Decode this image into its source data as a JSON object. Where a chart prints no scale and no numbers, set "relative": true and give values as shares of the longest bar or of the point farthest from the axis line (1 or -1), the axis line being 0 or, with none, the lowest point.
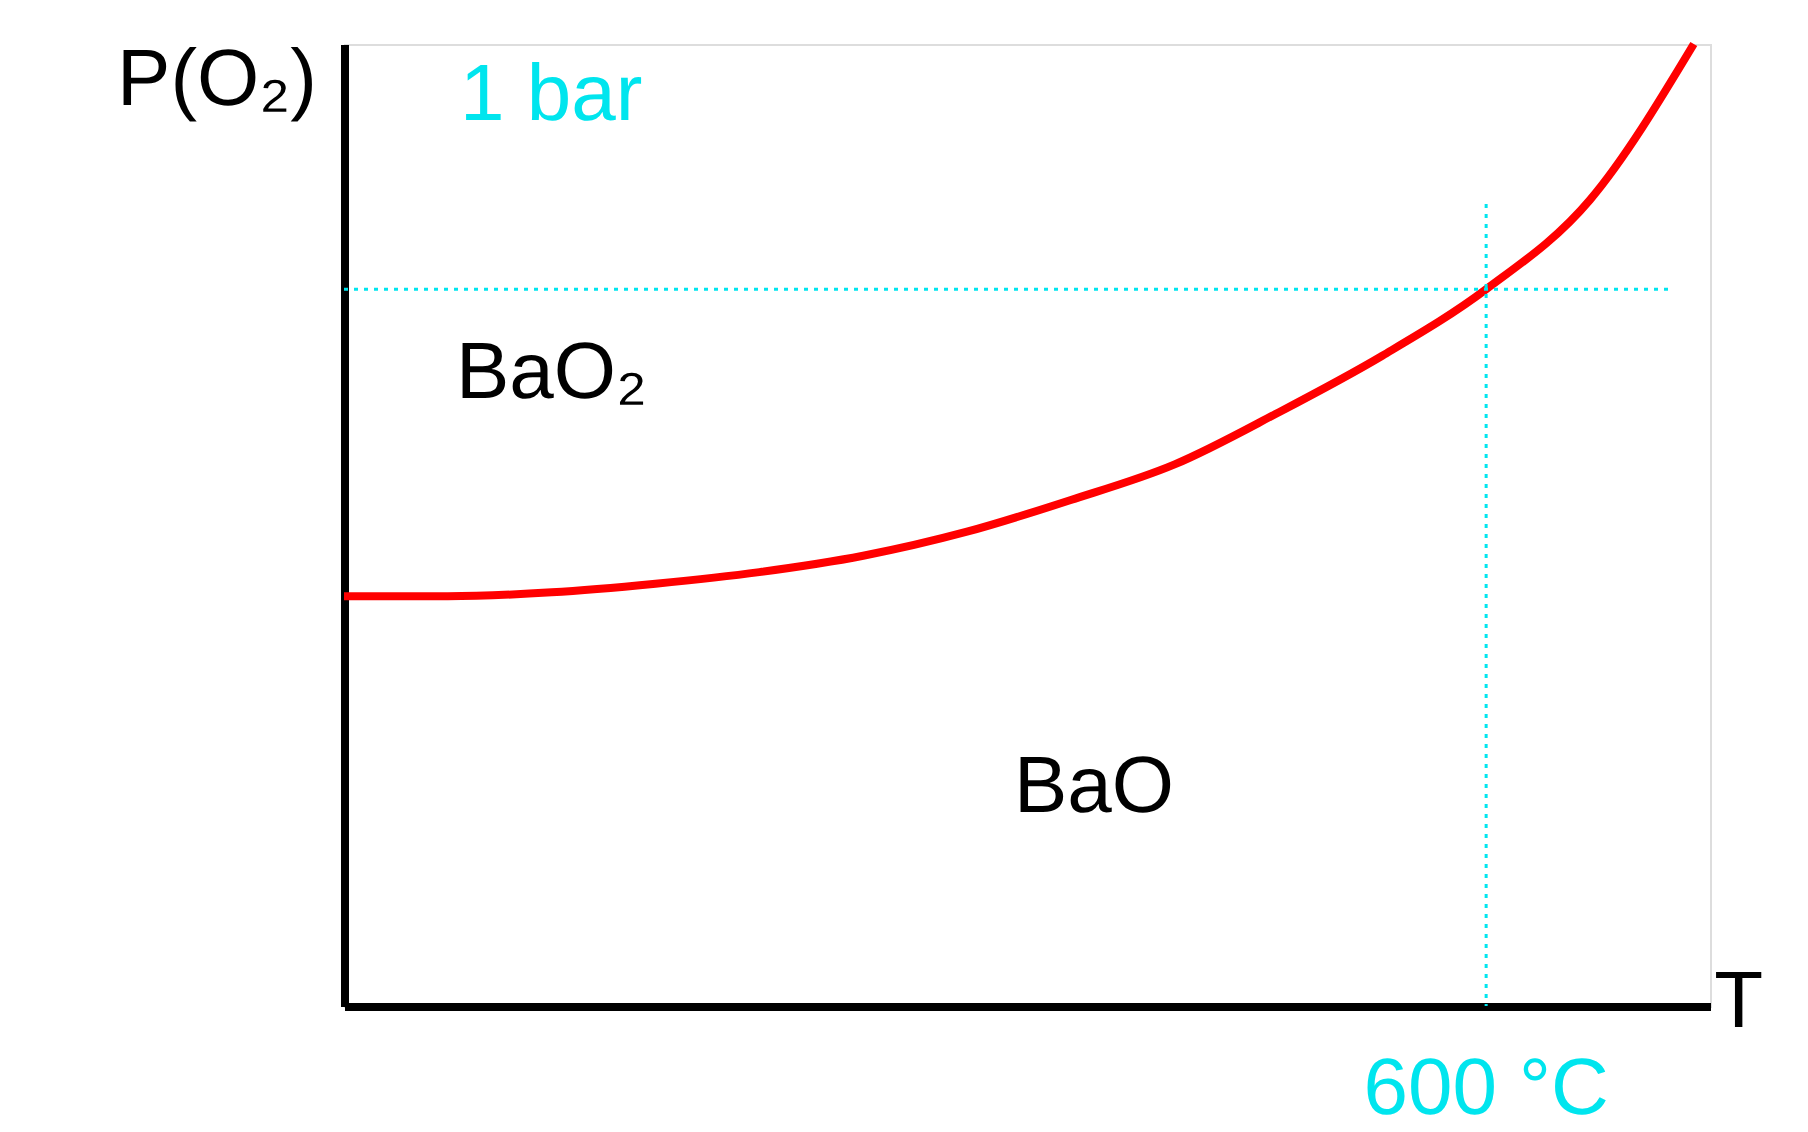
{
  "chart_data": {
    "type": "line",
    "relative": true,
    "xlabel": "T",
    "ylabel": "P(O₂)",
    "categories": [
      null,
      null,
      null,
      null,
      null,
      null,
      null,
      null,
      null,
      null,
      null,
      null,
      null,
      null
    ],
    "series": [
      {
        "color": "#ff0000",
        "values": [
          0.426,
          0.426,
          0.43,
          0.439,
          0.451,
          0.468,
          0.493,
          0.526,
          0.563,
          0.617,
          0.676,
          0.745,
          0.838,
          1
        ]
      }
    ],
    "ref_lines": [
      {
        "axis": "y",
        "value": 0.745,
        "label": "1 bar",
        "color": "#00e5ee",
        "line_style": "dotted"
      }
    ],
    "annotations": [
      "BaO₂",
      "BaO",
      "600 °C"
    ],
    "tick_labels": false,
    "grid": false,
    "marker": "none",
    "line_style": "solid"
  }
}
